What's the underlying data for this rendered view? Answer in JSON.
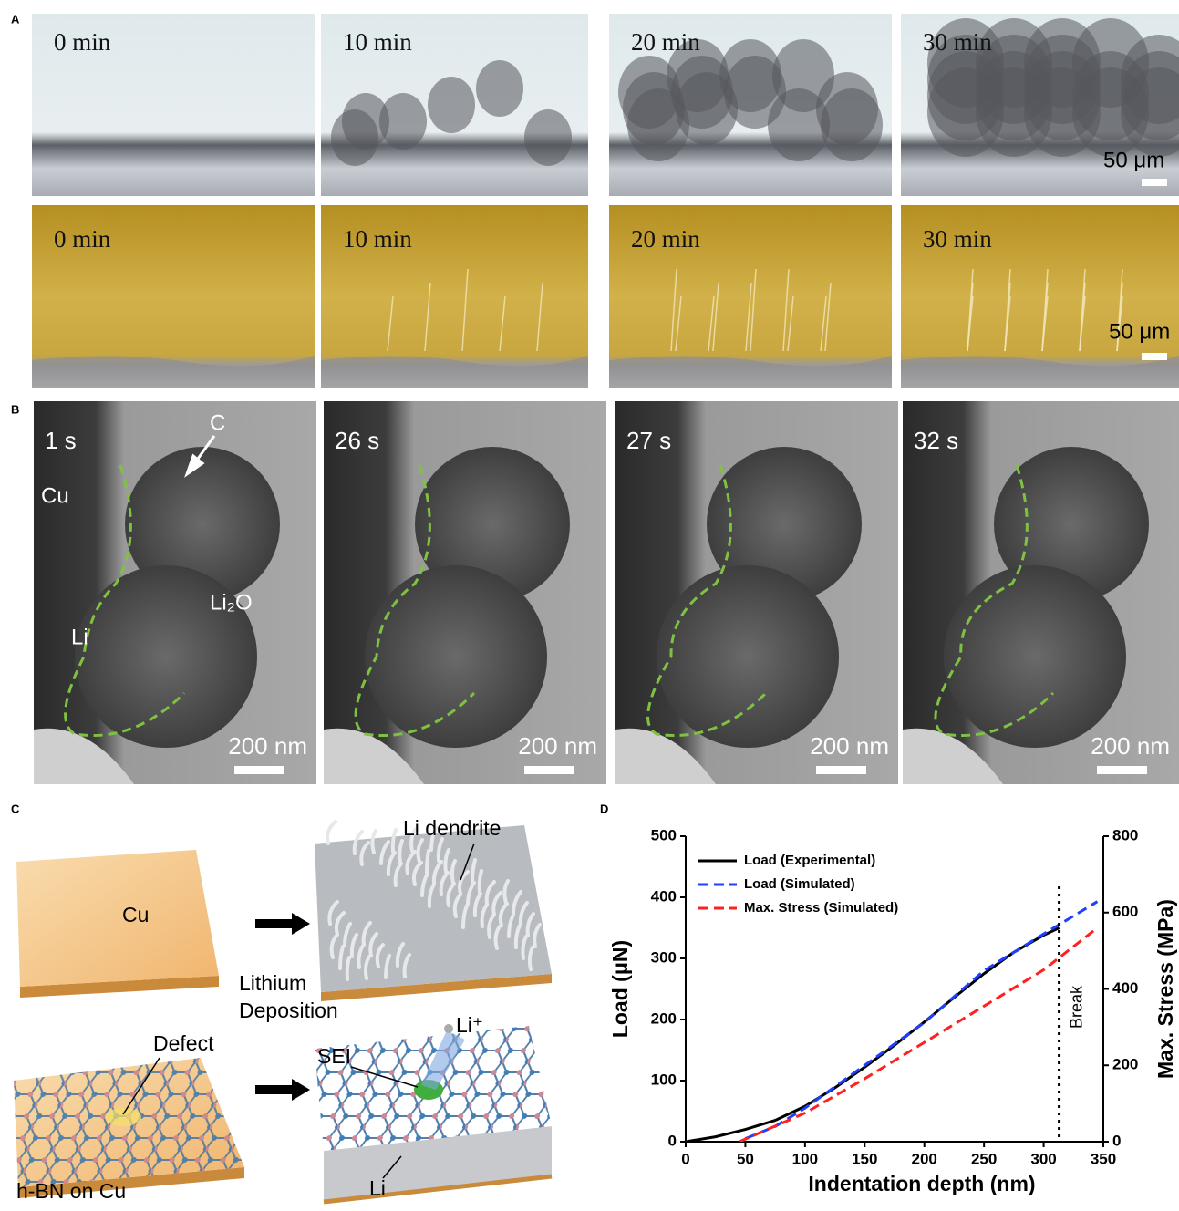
{
  "panels": {
    "A": {
      "letter": "A",
      "rows": [
        {
          "frames": [
            "0 min",
            "10 min",
            "20 min",
            "30 min"
          ],
          "scale": "50 μm"
        },
        {
          "frames": [
            "0 min",
            "10 min",
            "20 min",
            "30 min"
          ],
          "scale": "50 μm"
        }
      ]
    },
    "B": {
      "letter": "B",
      "frames": [
        "1 s",
        "26 s",
        "27 s",
        "32 s"
      ],
      "scale": "200 nm",
      "labels": [
        "Cu",
        "C",
        "Li",
        "Li₂O"
      ]
    },
    "C": {
      "letter": "C",
      "labels": {
        "cu": "Cu",
        "dendrite": "Li dendrite",
        "process": [
          "Lithium",
          "Deposition"
        ],
        "defect": "Defect",
        "sei": "SEI",
        "ion": "Li⁺",
        "hbn": "h-BN on Cu",
        "li": "Li"
      }
    },
    "D": {
      "letter": "D"
    }
  },
  "chart_data": {
    "type": "line",
    "x_label": "Indentation depth (nm)",
    "y_label": "Load (μN)",
    "y2_label": "Max. Stress (MPa)",
    "xlim": [
      0,
      350
    ],
    "xticks": [
      0,
      50,
      100,
      150,
      200,
      250,
      300,
      350
    ],
    "ylim": [
      0,
      500
    ],
    "yticks": [
      0,
      100,
      200,
      300,
      400,
      500
    ],
    "y2lim": [
      0,
      800
    ],
    "y2ticks": [
      0,
      200,
      400,
      600,
      800
    ],
    "legend": "upper left",
    "series": [
      {
        "name": "Load (Experimental)",
        "color": "#000000",
        "line_style": "solid",
        "x": [
          0,
          25,
          50,
          75,
          100,
          125,
          150,
          175,
          200,
          225,
          250,
          275,
          300,
          313
        ],
        "values": [
          0,
          8,
          20,
          35,
          58,
          88,
          122,
          158,
          196,
          236,
          275,
          310,
          338,
          350
        ]
      },
      {
        "name": "Load (Simulated)",
        "color": "#1f3fff",
        "line_style": "dashed",
        "x": [
          50,
          75,
          100,
          150,
          200,
          250,
          300,
          345
        ],
        "values": [
          5,
          25,
          55,
          125,
          195,
          280,
          340,
          393
        ]
      },
      {
        "name": "Max. Stress (Simulated)",
        "color": "#ff2020",
        "line_style": "dashed",
        "axis": "y2",
        "x": [
          45,
          100,
          150,
          200,
          250,
          300,
          345
        ],
        "values": [
          0,
          75,
          165,
          260,
          355,
          450,
          560
        ]
      }
    ],
    "annotations": [
      {
        "text": "Break",
        "x": 313
      }
    ]
  }
}
